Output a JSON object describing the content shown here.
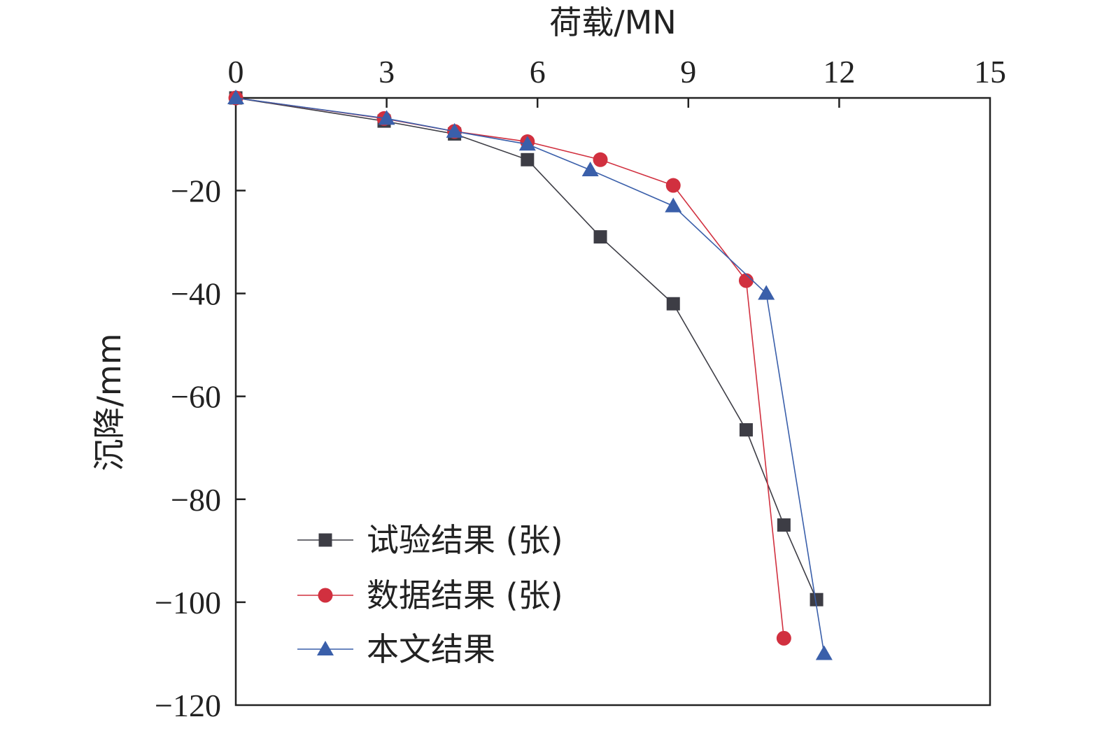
{
  "chart_data": {
    "type": "line",
    "xlabel": "荷载/MN",
    "ylabel": "沉降/mm",
    "xlim": [
      0,
      15
    ],
    "ylim": [
      -120,
      -2
    ],
    "x_axis_position": "top",
    "xticks": [
      "0",
      "3",
      "6",
      "9",
      "12",
      "15"
    ],
    "yticks": [
      "−20",
      "−40",
      "−60",
      "−80",
      "−100",
      "−120"
    ],
    "grid": false,
    "legend_position": "bottom-left",
    "series": [
      {
        "name": "试验结果 (张)",
        "color": "#3d3d45",
        "marker": "square",
        "x": [
          0,
          2.95,
          4.35,
          5.8,
          7.25,
          8.7,
          10.15,
          10.9,
          11.55
        ],
        "y": [
          -2,
          -6.5,
          -9,
          -14,
          -29,
          -42,
          -66.5,
          -85,
          -99.5
        ]
      },
      {
        "name": "数据结果 (张)",
        "color": "#d1303f",
        "marker": "circle",
        "x": [
          0,
          2.95,
          4.35,
          5.8,
          7.25,
          8.7,
          10.15,
          10.9
        ],
        "y": [
          -2,
          -6,
          -8.5,
          -10.5,
          -14,
          -19,
          -37.5,
          -107
        ]
      },
      {
        "name": "本文结果",
        "color": "#3a5faa",
        "marker": "triangle",
        "x": [
          0,
          3.0,
          4.35,
          5.8,
          7.05,
          8.7,
          10.55,
          11.7
        ],
        "y": [
          -2,
          -6,
          -8.5,
          -11,
          -16,
          -23,
          -40,
          -110
        ]
      }
    ]
  }
}
